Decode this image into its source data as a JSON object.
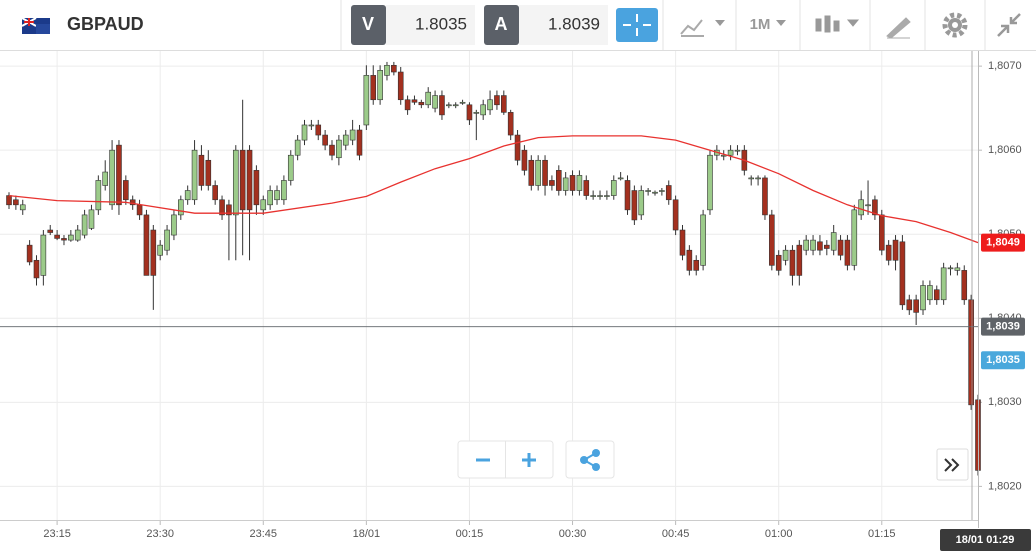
{
  "toolbar": {
    "symbol": "GBPAUD",
    "bid_label": "V",
    "bid": "1.8035",
    "ask_label": "A",
    "ask": "1.8039",
    "timeframe": "1M"
  },
  "chart_data": {
    "type": "candlestick",
    "up_color": "#9ccb8a",
    "down_color": "#a3301f",
    "ma_color": "#e8322f",
    "grid": true,
    "ylim": [
      1.8016,
      1.80718
    ],
    "yticks": [
      {
        "value": 1.807,
        "label": "1,8070"
      },
      {
        "value": 1.806,
        "label": "1,8060"
      },
      {
        "value": 1.805,
        "label": "1,8050"
      },
      {
        "value": 1.804,
        "label": "1,8040"
      },
      {
        "value": 1.803,
        "label": "1,8030"
      },
      {
        "value": 1.802,
        "label": "1,8020"
      }
    ],
    "xticks": [
      "23:15",
      "23:30",
      "23:45",
      {
        "value": "00:00",
        "label": "18/01"
      },
      "00:15",
      "00:30",
      "00:45",
      "01:00",
      "01:15"
    ],
    "x": [
      "23:08",
      "23:09",
      "23:10",
      "23:11",
      "23:12",
      "23:13",
      "23:14",
      "23:15",
      "23:16",
      "23:17",
      "23:18",
      "23:19",
      "23:20",
      "23:21",
      "23:22",
      "23:23",
      "23:24",
      "23:25",
      "23:26",
      "23:27",
      "23:28",
      "23:29",
      "23:30",
      "23:31",
      "23:32",
      "23:33",
      "23:34",
      "23:35",
      "23:36",
      "23:37",
      "23:38",
      "23:39",
      "23:40",
      "23:41",
      "23:42",
      "23:43",
      "23:44",
      "23:45",
      "23:46",
      "23:47",
      "23:48",
      "23:49",
      "23:50",
      "23:51",
      "23:52",
      "23:53",
      "23:54",
      "23:55",
      "23:56",
      "23:57",
      "23:58",
      "23:59",
      "00:00",
      "00:01",
      "00:02",
      "00:03",
      "00:04",
      "00:05",
      "00:06",
      "00:07",
      "00:08",
      "00:09",
      "00:10",
      "00:11",
      "00:12",
      "00:13",
      "00:14",
      "00:15",
      "00:16",
      "00:17",
      "00:18",
      "00:19",
      "00:20",
      "00:21",
      "00:22",
      "00:23",
      "00:24",
      "00:25",
      "00:26",
      "00:27",
      "00:28",
      "00:29",
      "00:30",
      "00:31",
      "00:32",
      "00:33",
      "00:34",
      "00:35",
      "00:36",
      "00:37",
      "00:38",
      "00:39",
      "00:40",
      "00:41",
      "00:42",
      "00:43",
      "00:44",
      "00:45",
      "00:46",
      "00:47",
      "00:48",
      "00:49",
      "00:50",
      "00:51",
      "00:52",
      "00:53",
      "00:54",
      "00:55",
      "00:56",
      "00:57",
      "00:58",
      "00:59",
      "01:00",
      "01:01",
      "01:02",
      "01:03",
      "01:04",
      "01:05",
      "01:06",
      "01:07",
      "01:08",
      "01:09",
      "01:10",
      "01:11",
      "01:12",
      "01:13",
      "01:14",
      "01:15",
      "01:16",
      "01:17",
      "01:18",
      "01:19",
      "01:20",
      "01:21",
      "01:22",
      "01:23",
      "01:24",
      "01:25",
      "01:26",
      "01:27",
      "01:28",
      "01:29"
    ],
    "ohlc": [
      [
        1.80546,
        1.8055,
        1.8053,
        1.80535
      ],
      [
        1.80541,
        1.80546,
        1.80529,
        1.80535
      ],
      [
        1.80529,
        1.80541,
        1.80523,
        1.80535
      ],
      [
        1.80487,
        1.80493,
        1.80463,
        1.80467
      ],
      [
        1.80469,
        1.80475,
        1.80439,
        1.80448
      ],
      [
        1.80451,
        1.80505,
        1.80439,
        1.80499
      ],
      [
        1.80505,
        1.80511,
        1.80499,
        1.80502
      ],
      [
        1.80499,
        1.80505,
        1.80493,
        1.80495
      ],
      [
        1.80495,
        1.80499,
        1.80487,
        1.80493
      ],
      [
        1.80493,
        1.80505,
        1.80491,
        1.80499
      ],
      [
        1.80493,
        1.80511,
        1.80491,
        1.80505
      ],
      [
        1.80499,
        1.80529,
        1.80495,
        1.80523
      ],
      [
        1.80507,
        1.80535,
        1.80505,
        1.80529
      ],
      [
        1.80529,
        1.8057,
        1.80523,
        1.80564
      ],
      [
        1.80558,
        1.80588,
        1.80552,
        1.80574
      ],
      [
        1.80535,
        1.80612,
        1.80529,
        1.806
      ],
      [
        1.80606,
        1.80612,
        1.80523,
        1.80535
      ],
      [
        1.80564,
        1.8057,
        1.80535,
        1.80541
      ],
      [
        1.80541,
        1.80546,
        1.80529,
        1.80535
      ],
      [
        1.80535,
        1.80541,
        1.80517,
        1.80523
      ],
      [
        1.80523,
        1.80529,
        1.80451,
        1.80451
      ],
      [
        1.80505,
        1.80511,
        1.8041,
        1.80451
      ],
      [
        1.80475,
        1.80493,
        1.80469,
        1.80487
      ],
      [
        1.80481,
        1.80511,
        1.80475,
        1.80505
      ],
      [
        1.80499,
        1.80529,
        1.80493,
        1.80523
      ],
      [
        1.80523,
        1.80546,
        1.80517,
        1.80541
      ],
      [
        1.80541,
        1.80558,
        1.80535,
        1.80552
      ],
      [
        1.80541,
        1.80612,
        1.80535,
        1.806
      ],
      [
        1.80594,
        1.80606,
        1.80552,
        1.80558
      ],
      [
        1.80588,
        1.806,
        1.80552,
        1.80558
      ],
      [
        1.80558,
        1.80564,
        1.80535,
        1.80541
      ],
      [
        1.80541,
        1.80546,
        1.80517,
        1.80523
      ],
      [
        1.80535,
        1.80541,
        1.80469,
        1.80523
      ],
      [
        1.80523,
        1.80606,
        1.80469,
        1.806
      ],
      [
        1.806,
        1.8066,
        1.80475,
        1.80529
      ],
      [
        1.806,
        1.80606,
        1.80469,
        1.80529
      ],
      [
        1.80576,
        1.80582,
        1.80523,
        1.80535
      ],
      [
        1.80529,
        1.80546,
        1.80523,
        1.80541
      ],
      [
        1.80535,
        1.80558,
        1.80529,
        1.80552
      ],
      [
        1.80541,
        1.80558,
        1.80535,
        1.80552
      ],
      [
        1.80541,
        1.8057,
        1.80535,
        1.80564
      ],
      [
        1.80564,
        1.806,
        1.80558,
        1.80594
      ],
      [
        1.80594,
        1.80618,
        1.80588,
        1.80612
      ],
      [
        1.80612,
        1.80636,
        1.80606,
        1.8063
      ],
      [
        1.8063,
        1.80636,
        1.80624,
        1.8063
      ],
      [
        1.8063,
        1.80636,
        1.80612,
        1.80618
      ],
      [
        1.80618,
        1.80624,
        1.806,
        1.80606
      ],
      [
        1.80606,
        1.80612,
        1.80588,
        1.80594
      ],
      [
        1.80591,
        1.80618,
        1.80582,
        1.80612
      ],
      [
        1.80606,
        1.80624,
        1.806,
        1.80618
      ],
      [
        1.80612,
        1.80636,
        1.80606,
        1.80624
      ],
      [
        1.80624,
        1.8063,
        1.80588,
        1.80594
      ],
      [
        1.8063,
        1.80701,
        1.80624,
        1.80689
      ],
      [
        1.80689,
        1.80701,
        1.80654,
        1.8066
      ],
      [
        1.8066,
        1.80701,
        1.80654,
        1.80695
      ],
      [
        1.80689,
        1.80705,
        1.80683,
        1.80701
      ],
      [
        1.80701,
        1.80705,
        1.80689,
        1.80693
      ],
      [
        1.80693,
        1.80699,
        1.80654,
        1.8066
      ],
      [
        1.8066,
        1.80665,
        1.80642,
        1.80648
      ],
      [
        1.8066,
        1.80665,
        1.80654,
        1.80657
      ],
      [
        1.80657,
        1.8066,
        1.8065,
        1.80654
      ],
      [
        1.80654,
        1.80675,
        1.8065,
        1.80669
      ],
      [
        1.8065,
        1.80671,
        1.80645,
        1.80665
      ],
      [
        1.80665,
        1.80671,
        1.80636,
        1.80642
      ],
      [
        1.80654,
        1.80657,
        1.8065,
        1.80654
      ],
      [
        1.80654,
        1.80657,
        1.8065,
        1.80654
      ],
      [
        1.80657,
        1.8066,
        1.80654,
        1.80657
      ],
      [
        1.80654,
        1.80657,
        1.8063,
        1.80636
      ],
      [
        1.80645,
        1.80648,
        1.80612,
        1.80645
      ],
      [
        1.80642,
        1.8066,
        1.80636,
        1.80654
      ],
      [
        1.80648,
        1.80671,
        1.80642,
        1.8066
      ],
      [
        1.80665,
        1.80671,
        1.80648,
        1.80654
      ],
      [
        1.80665,
        1.80671,
        1.80642,
        1.80645
      ],
      [
        1.80645,
        1.80648,
        1.80612,
        1.80618
      ],
      [
        1.80618,
        1.80624,
        1.80582,
        1.80588
      ],
      [
        1.806,
        1.80606,
        1.8057,
        1.80576
      ],
      [
        1.80588,
        1.80594,
        1.80552,
        1.80558
      ],
      [
        1.80558,
        1.80594,
        1.80552,
        1.80588
      ],
      [
        1.80588,
        1.80594,
        1.80546,
        1.80558
      ],
      [
        1.80564,
        1.8057,
        1.80552,
        1.80558
      ],
      [
        1.80576,
        1.80582,
        1.80546,
        1.80552
      ],
      [
        1.80552,
        1.80574,
        1.80546,
        1.80567
      ],
      [
        1.8057,
        1.80576,
        1.80546,
        1.80552
      ],
      [
        1.80552,
        1.80576,
        1.80546,
        1.8057
      ],
      [
        1.80564,
        1.8057,
        1.80541,
        1.80546
      ],
      [
        1.80546,
        1.80552,
        1.80541,
        1.80546
      ],
      [
        1.80546,
        1.80552,
        1.80541,
        1.80546
      ],
      [
        1.80546,
        1.80552,
        1.80541,
        1.80546
      ],
      [
        1.80546,
        1.8057,
        1.80541,
        1.80564
      ],
      [
        1.80567,
        1.80574,
        1.80564,
        1.80567
      ],
      [
        1.80564,
        1.8057,
        1.80523,
        1.80529
      ],
      [
        1.80552,
        1.80558,
        1.80511,
        1.80517
      ],
      [
        1.80523,
        1.80558,
        1.80517,
        1.80552
      ],
      [
        1.80552,
        1.80555,
        1.80546,
        1.80552
      ],
      [
        1.8055,
        1.80552,
        1.80546,
        1.8055
      ],
      [
        1.80552,
        1.80555,
        1.80546,
        1.80552
      ],
      [
        1.80558,
        1.80564,
        1.80535,
        1.80541
      ],
      [
        1.80541,
        1.80546,
        1.80499,
        1.80505
      ],
      [
        1.80505,
        1.80511,
        1.80469,
        1.80475
      ],
      [
        1.80481,
        1.80487,
        1.80451,
        1.80457
      ],
      [
        1.80469,
        1.80475,
        1.80451,
        1.80457
      ],
      [
        1.80463,
        1.80529,
        1.80457,
        1.80523
      ],
      [
        1.80529,
        1.806,
        1.80523,
        1.80594
      ],
      [
        1.80594,
        1.80606,
        1.80588,
        1.806
      ],
      [
        1.80594,
        1.806,
        1.80588,
        1.80594
      ],
      [
        1.80594,
        1.80606,
        1.80588,
        1.806
      ],
      [
        1.806,
        1.80606,
        1.80594,
        1.806
      ],
      [
        1.806,
        1.80606,
        1.8057,
        1.80576
      ],
      [
        1.80567,
        1.8057,
        1.80558,
        1.80567
      ],
      [
        1.80567,
        1.8057,
        1.80558,
        1.80567
      ],
      [
        1.80567,
        1.8057,
        1.80517,
        1.80523
      ],
      [
        1.80523,
        1.80529,
        1.80457,
        1.80463
      ],
      [
        1.80475,
        1.80481,
        1.80451,
        1.80457
      ],
      [
        1.80469,
        1.80487,
        1.80463,
        1.80481
      ],
      [
        1.80481,
        1.80487,
        1.80439,
        1.80451
      ],
      [
        1.80487,
        1.80493,
        1.80439,
        1.80451
      ],
      [
        1.80481,
        1.80499,
        1.80475,
        1.80493
      ],
      [
        1.80481,
        1.80499,
        1.80475,
        1.80493
      ],
      [
        1.80491,
        1.80499,
        1.80475,
        1.80481
      ],
      [
        1.80487,
        1.80493,
        1.80475,
        1.80483
      ],
      [
        1.80481,
        1.80511,
        1.80475,
        1.80502
      ],
      [
        1.80493,
        1.80499,
        1.80469,
        1.80475
      ],
      [
        1.80493,
        1.80499,
        1.80457,
        1.80463
      ],
      [
        1.80463,
        1.80535,
        1.80457,
        1.80529
      ],
      [
        1.80523,
        1.80552,
        1.80517,
        1.80541
      ],
      [
        1.80535,
        1.80564,
        1.80523,
        1.80535
      ],
      [
        1.80541,
        1.80546,
        1.80517,
        1.80523
      ],
      [
        1.80523,
        1.80529,
        1.80475,
        1.80481
      ],
      [
        1.80487,
        1.80493,
        1.80463,
        1.80469
      ],
      [
        1.80493,
        1.80499,
        1.80457,
        1.80469
      ],
      [
        1.80491,
        1.80499,
        1.8041,
        1.80416
      ],
      [
        1.80422,
        1.80428,
        1.80404,
        1.8041
      ],
      [
        1.80422,
        1.80428,
        1.80392,
        1.80407
      ],
      [
        1.8041,
        1.80445,
        1.80404,
        1.80439
      ],
      [
        1.80422,
        1.80445,
        1.80416,
        1.80439
      ],
      [
        1.80434,
        1.80439,
        1.80416,
        1.80422
      ],
      [
        1.80422,
        1.80466,
        1.80416,
        1.8046
      ],
      [
        1.8046,
        1.80463,
        1.80451,
        1.8046
      ],
      [
        1.80457,
        1.80466,
        1.80451,
        1.8046
      ],
      [
        1.80457,
        1.80463,
        1.80416,
        1.80422
      ],
      [
        1.80422,
        1.80428,
        1.80291,
        1.80297
      ],
      [
        1.80303,
        1.80309,
        1.80213,
        1.80219
      ]
    ],
    "ma_x": [
      "23:08",
      "23:15",
      "23:25",
      "23:35",
      "23:45",
      "23:55",
      "00:00",
      "00:05",
      "00:10",
      "00:15",
      "00:20",
      "00:25",
      "00:30",
      "00:40",
      "00:45",
      "00:50",
      "00:55",
      "01:00",
      "01:05",
      "01:10",
      "01:15",
      "01:20",
      "01:25",
      "01:29"
    ],
    "ma_values": [
      1.80546,
      1.8054,
      1.80538,
      1.80525,
      1.80525,
      1.80537,
      1.80545,
      1.80562,
      1.80578,
      1.8059,
      1.80605,
      1.80615,
      1.80617,
      1.80617,
      1.80612,
      1.806,
      1.80588,
      1.80572,
      1.80552,
      1.80535,
      1.80522,
      1.80515,
      1.80502,
      1.8049
    ],
    "price_markers": [
      {
        "value": 1.8049,
        "label": "1,8049",
        "color": "#ee1c1c"
      },
      {
        "value": 1.8039,
        "label": "1,8039",
        "color": "#5f6368",
        "line": true
      },
      {
        "value": 1.8035,
        "label": "1,8035",
        "color": "#4aa8dc"
      }
    ],
    "cursor_time_label": "18/01 01:29"
  }
}
